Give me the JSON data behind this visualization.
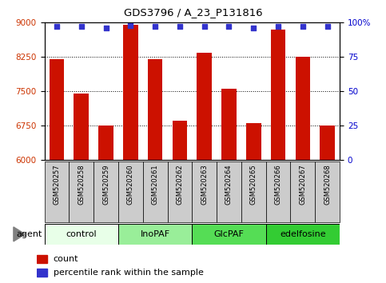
{
  "title": "GDS3796 / A_23_P131816",
  "samples": [
    "GSM520257",
    "GSM520258",
    "GSM520259",
    "GSM520260",
    "GSM520261",
    "GSM520262",
    "GSM520263",
    "GSM520264",
    "GSM520265",
    "GSM520266",
    "GSM520267",
    "GSM520268"
  ],
  "counts": [
    8200,
    7450,
    6750,
    8950,
    8200,
    6850,
    8350,
    7550,
    6800,
    8850,
    8250,
    6750
  ],
  "percentile_ranks": [
    97,
    97,
    96,
    98,
    97,
    97,
    97,
    97,
    96,
    97,
    97,
    97
  ],
  "groups": [
    {
      "label": "control",
      "start": 0,
      "end": 3,
      "color": "#e8ffe8"
    },
    {
      "label": "InoPAF",
      "start": 3,
      "end": 6,
      "color": "#99ee99"
    },
    {
      "label": "GlcPAF",
      "start": 6,
      "end": 9,
      "color": "#55dd55"
    },
    {
      "label": "edelfosine",
      "start": 9,
      "end": 12,
      "color": "#33cc33"
    }
  ],
  "ylim_left": [
    6000,
    9000
  ],
  "ylim_right": [
    0,
    100
  ],
  "yticks_left": [
    6000,
    6750,
    7500,
    8250,
    9000
  ],
  "yticks_right": [
    0,
    25,
    50,
    75,
    100
  ],
  "bar_color": "#cc1100",
  "dot_color": "#3333cc",
  "background_color": "#ffffff",
  "grid_color": "#000000",
  "label_count": "count",
  "label_percentile": "percentile rank within the sample",
  "sample_box_color": "#cccccc",
  "bar_width": 0.6
}
